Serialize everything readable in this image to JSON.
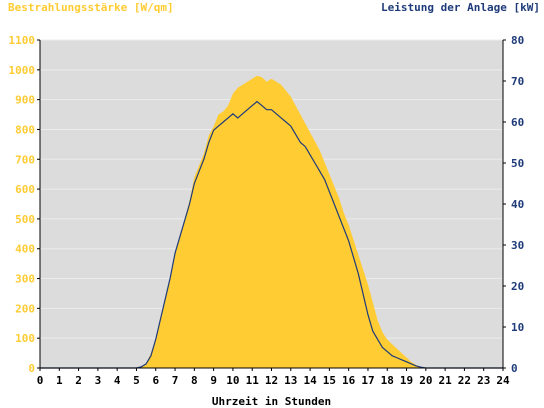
{
  "chart_data": {
    "type": "area",
    "ylabel_left": "Bestrahlungsstärke [W/qm]",
    "ylabel_right": "Leistung der Anlage [kW]",
    "xlabel": "Uhrzeit in Stunden",
    "xlim": [
      0,
      24
    ],
    "ylim_left": [
      0,
      1100
    ],
    "ylim_right": [
      0,
      80
    ],
    "x_ticks": [
      0,
      1,
      2,
      3,
      4,
      5,
      6,
      7,
      8,
      9,
      10,
      11,
      12,
      13,
      14,
      15,
      16,
      17,
      18,
      19,
      20,
      21,
      22,
      23,
      24
    ],
    "y_ticks_left": [
      0,
      100,
      200,
      300,
      400,
      500,
      600,
      700,
      800,
      900,
      1000,
      1100
    ],
    "y_ticks_right": [
      0,
      10,
      20,
      30,
      40,
      50,
      60,
      70,
      80
    ],
    "grid": true,
    "colors": {
      "irradiance": "#FFCC33",
      "power": "#1F3B7A",
      "plot_bg": "#DCDCDC"
    },
    "series": [
      {
        "name": "Bestrahlungsstärke [W/qm]",
        "axis": "left",
        "x": [
          0,
          5.0,
          5.25,
          5.5,
          5.75,
          6.0,
          6.25,
          6.5,
          6.75,
          7.0,
          7.25,
          7.5,
          7.75,
          8.0,
          8.25,
          8.5,
          8.75,
          9.0,
          9.25,
          9.5,
          9.75,
          10.0,
          10.25,
          10.5,
          10.75,
          11.0,
          11.25,
          11.5,
          11.75,
          12.0,
          12.25,
          12.5,
          12.75,
          13.0,
          13.25,
          13.5,
          13.75,
          14.0,
          14.25,
          14.5,
          14.75,
          15.0,
          15.25,
          15.5,
          15.75,
          16.0,
          16.25,
          16.5,
          16.75,
          17.0,
          17.25,
          17.5,
          17.75,
          18.0,
          18.25,
          18.5,
          18.75,
          19.0,
          19.25,
          19.5,
          19.75,
          20.0,
          24
        ],
        "values": [
          0,
          0,
          5,
          15,
          50,
          100,
          170,
          240,
          300,
          380,
          440,
          500,
          560,
          640,
          680,
          720,
          780,
          810,
          850,
          860,
          880,
          920,
          940,
          950,
          960,
          970,
          980,
          975,
          960,
          970,
          960,
          950,
          930,
          910,
          880,
          850,
          820,
          790,
          760,
          730,
          690,
          650,
          610,
          570,
          520,
          480,
          430,
          380,
          330,
          280,
          220,
          160,
          120,
          95,
          80,
          65,
          50,
          35,
          20,
          10,
          3,
          0,
          0
        ]
      },
      {
        "name": "Leistung der Anlage [kW]",
        "axis": "right",
        "x": [
          0,
          5.0,
          5.25,
          5.5,
          5.75,
          6.0,
          6.25,
          6.5,
          6.75,
          7.0,
          7.25,
          7.5,
          7.75,
          8.0,
          8.25,
          8.5,
          8.75,
          9.0,
          9.25,
          9.5,
          9.75,
          10.0,
          10.25,
          10.5,
          10.75,
          11.0,
          11.25,
          11.5,
          11.75,
          12.0,
          12.25,
          12.5,
          12.75,
          13.0,
          13.25,
          13.5,
          13.75,
          14.0,
          14.25,
          14.5,
          14.75,
          15.0,
          15.25,
          15.5,
          15.75,
          16.0,
          16.25,
          16.5,
          16.75,
          17.0,
          17.25,
          17.5,
          17.75,
          18.0,
          18.25,
          18.5,
          18.75,
          19.0,
          19.25,
          19.5,
          19.75,
          20.0,
          24
        ],
        "values": [
          0,
          0,
          0.3,
          1,
          3,
          7,
          12,
          17,
          22,
          28,
          32,
          36,
          40,
          45,
          48,
          51,
          55,
          58,
          59,
          60,
          61,
          62,
          61,
          62,
          63,
          64,
          65,
          64,
          63,
          63,
          62,
          61,
          60,
          59,
          57,
          55,
          54,
          52,
          50,
          48,
          46,
          43,
          40,
          37,
          34,
          31,
          27,
          23,
          18,
          13,
          9,
          7,
          5,
          4,
          3,
          2.5,
          2,
          1.5,
          1,
          0.5,
          0.2,
          0,
          0
        ]
      }
    ]
  }
}
